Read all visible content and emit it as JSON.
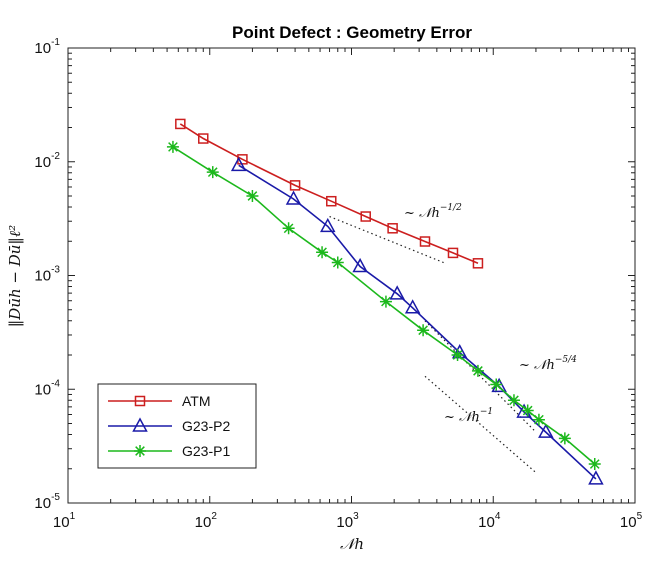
{
  "chart_data": {
    "type": "line",
    "title": "Point Defect : Geometry Error",
    "xlabel": "𝒩h",
    "ylabel": "‖Dūh − Dū‖ℓ²",
    "xscale": "log",
    "yscale": "log",
    "xlim": [
      10,
      100000
    ],
    "ylim": [
      1e-05,
      0.1
    ],
    "x_ticks": [
      {
        "base": "10",
        "exp": "1"
      },
      {
        "base": "10",
        "exp": "2"
      },
      {
        "base": "10",
        "exp": "3"
      },
      {
        "base": "10",
        "exp": "4"
      },
      {
        "base": "10",
        "exp": "5"
      }
    ],
    "y_ticks": [
      {
        "base": "10",
        "exp": "-5"
      },
      {
        "base": "10",
        "exp": "-4"
      },
      {
        "base": "10",
        "exp": "-3"
      },
      {
        "base": "10",
        "exp": "-2"
      },
      {
        "base": "10",
        "exp": "-1"
      }
    ],
    "grid": false,
    "legend_position": "bottom-left",
    "series": [
      {
        "name": "ATM",
        "color": "#cc1f1f",
        "marker": "square",
        "x": [
          62,
          90,
          170,
          400,
          720,
          1260,
          1950,
          3300,
          5200,
          7800
        ],
        "y": [
          0.0215,
          0.016,
          0.0105,
          0.0062,
          0.0045,
          0.0033,
          0.0026,
          0.00199,
          0.00158,
          0.00128
        ]
      },
      {
        "name": "G23-P2",
        "color": "#1a1aa8",
        "marker": "triangle",
        "x": [
          160,
          390,
          680,
          1150,
          2100,
          2700,
          5800,
          11000,
          16500,
          23500,
          53000
        ],
        "y": [
          0.0093,
          0.0047,
          0.0027,
          0.0012,
          0.00069,
          0.00052,
          0.00021,
          0.000106,
          6.3e-05,
          4.2e-05,
          1.63e-05
        ]
      },
      {
        "name": "G23-P1",
        "color": "#1cb81c",
        "marker": "star",
        "x": [
          55,
          105,
          200,
          360,
          620,
          800,
          1750,
          3200,
          5600,
          7800,
          10500,
          14000,
          17500,
          21000,
          32000,
          52000
        ],
        "y": [
          0.0135,
          0.0081,
          0.005,
          0.0026,
          0.0016,
          0.0013,
          0.00059,
          0.00033,
          0.0002,
          0.000145,
          0.00011,
          8e-05,
          6.5e-05,
          5.4e-05,
          3.7e-05,
          2.2e-05
        ]
      }
    ],
    "annotations": [
      {
        "text": "~ 𝒩h",
        "exp": "−1/2"
      },
      {
        "text": "~ 𝒩h",
        "exp": "−5/4"
      },
      {
        "text": "~ 𝒩h",
        "exp": "−1"
      }
    ]
  }
}
